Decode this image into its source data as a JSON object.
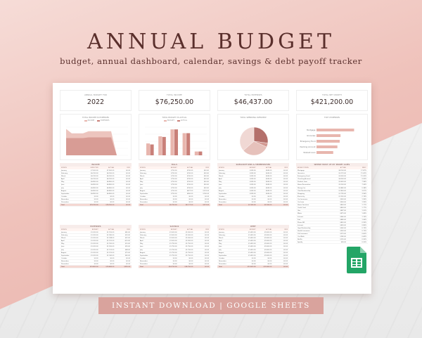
{
  "title": "ANNUAL BUDGET",
  "subtitle": "budget, annual dashboard, calendar, savings & debt payoff tracker",
  "banner": "INSTANT DOWNLOAD | GOOGLE SHEETS",
  "colors": {
    "accent": "#d9a39d",
    "title": "#5a2f2c",
    "bar_income": "#e8b6ae",
    "bar_expense": "#c98079",
    "pie": [
      "#b4706b",
      "#d39a93",
      "#e6c1bb",
      "#f0d8d4"
    ]
  },
  "kpis": [
    {
      "label": "ANNUAL BUDGET FOR",
      "value": "2022"
    },
    {
      "label": "TOTAL INCOME",
      "value": "$76,250.00"
    },
    {
      "label": "TOTAL EXPENSES",
      "value": "$46,437.00"
    },
    {
      "label": "TOTAL NET WORTH",
      "value": "$421,200.00"
    }
  ],
  "charts": [
    {
      "title": "TOTAL INCOME VS EXPENSES",
      "legend": [
        "INCOME",
        "EXPENSES"
      ]
    },
    {
      "title": "TOTAL BUDGET VS ACTUAL",
      "legend": [
        "BUDGET",
        "ACTUAL"
      ]
    },
    {
      "title": "TOTAL SPENDING OVERVIEW",
      "legend": []
    },
    {
      "title": "TOP 5 EXPENSES",
      "legend": []
    }
  ],
  "months": [
    "January",
    "February",
    "March",
    "April",
    "May",
    "June",
    "July",
    "August",
    "September",
    "October",
    "November",
    "December"
  ],
  "tables": [
    {
      "title": "INCOME",
      "cols": [
        "MONTH",
        "EXPECTED",
        "ACTUAL",
        "DIFF"
      ],
      "values": [
        [
          "$7,500.00",
          "$7,500.00",
          "$0.00"
        ],
        [
          "$6,250.00",
          "$6,250.00",
          "$0.00"
        ],
        [
          "$6,250.00",
          "$6,250.00",
          "$0.00"
        ],
        [
          "$6,250.00",
          "$6,250.00",
          "$0.00"
        ],
        [
          "$6,850.00",
          "$6,850.00",
          "$0.00"
        ],
        [
          "$6,850.00",
          "$6,850.00",
          "$0.00"
        ],
        [
          "$6,850.00",
          "$6,850.00",
          "$0.00"
        ],
        [
          "$6,850.00",
          "$6,850.00",
          "$0.00"
        ],
        [
          "$6,850.00",
          "$6,850.00",
          "$0.00"
        ],
        [
          "$0.00",
          "$0.00",
          "$0.00"
        ],
        [
          "$0.00",
          "$0.00",
          "$0.00"
        ],
        [
          "$0.00",
          "$0.00",
          "$0.00"
        ]
      ],
      "total": [
        "Total",
        "$76,250.00",
        "$76,250.00",
        "$0.00"
      ]
    },
    {
      "title": "BILLS",
      "cols": [
        "MONTH",
        "BUDGET",
        "ACTUAL",
        "DIFF"
      ],
      "values": [
        [
          "$750.00",
          "$700.00",
          "$50.00"
        ],
        [
          "$750.00",
          "$700.00",
          "$50.00"
        ],
        [
          "$750.00",
          "$700.00",
          "$50.00"
        ],
        [
          "$750.00",
          "$700.00",
          "$50.00"
        ],
        [
          "$750.00",
          "$700.00",
          "$50.00"
        ],
        [
          "$750.00",
          "$700.00",
          "$50.00"
        ],
        [
          "$750.00",
          "$700.00",
          "$50.00"
        ],
        [
          "$750.00",
          "$627.00",
          "$123.00"
        ],
        [
          "$750.00",
          "$650.00",
          "$100.00"
        ],
        [
          "$0.00",
          "$0.00",
          "$0.00"
        ],
        [
          "$0.00",
          "$0.00",
          "$0.00"
        ],
        [
          "$0.00",
          "$0.00",
          "$0.00"
        ]
      ],
      "total": [
        "Total",
        "$6,750.00",
        "$6,177.00",
        "$573.00"
      ]
    },
    {
      "title": "SUBSCRIPTIONS & MEMBERSHIPS",
      "cols": [
        "MONTH",
        "BUDGET",
        "ACTUAL",
        "DIFF"
      ],
      "values": [
        [
          "$240.00",
          "$240.00",
          "$0.00"
        ],
        [
          "$240.00",
          "$240.00",
          "$0.00"
        ],
        [
          "$240.00",
          "$240.00",
          "$0.00"
        ],
        [
          "$240.00",
          "$240.00",
          "$0.00"
        ],
        [
          "$240.00",
          "$240.00",
          "$0.00"
        ],
        [
          "$240.00",
          "$240.00",
          "$0.00"
        ],
        [
          "$240.00",
          "$240.00",
          "$0.00"
        ],
        [
          "$240.00",
          "$240.00",
          "$0.00"
        ],
        [
          "$240.00",
          "$240.00",
          "$0.00"
        ],
        [
          "$0.00",
          "$0.00",
          "$0.00"
        ],
        [
          "$0.00",
          "$0.00",
          "$0.00"
        ],
        [
          "$0.00",
          "$0.00",
          "$0.00"
        ]
      ],
      "total": [
        "Total",
        "$2,160.00",
        "$2,160.00",
        "$0.00"
      ]
    },
    {
      "title": "EXPENSES",
      "cols": [
        "MONTH",
        "BUDGET",
        "ACTUAL",
        "DIFF"
      ],
      "values": [
        [
          "$1,200.00",
          "$1,155.00",
          "$45.00"
        ],
        [
          "$1,200.00",
          "$1,180.00",
          "$20.00"
        ],
        [
          "$1,200.00",
          "$1,148.00",
          "$52.00"
        ],
        [
          "$1,200.00",
          "$1,210.00",
          "-$10.00"
        ],
        [
          "$1,200.00",
          "$1,190.00",
          "$10.00"
        ],
        [
          "$1,200.00",
          "$1,165.00",
          "$35.00"
        ],
        [
          "$1,200.00",
          "$1,132.00",
          "$68.00"
        ],
        [
          "$1,200.00",
          "$1,125.00",
          "$75.00"
        ],
        [
          "$1,200.00",
          "$1,140.00",
          "$60.00"
        ],
        [
          "$0.00",
          "$0.00",
          "$0.00"
        ],
        [
          "$0.00",
          "$0.00",
          "$0.00"
        ],
        [
          "$0.00",
          "$0.00",
          "$0.00"
        ]
      ],
      "total": [
        "Total",
        "$10,800.00",
        "$10,445.00",
        "$355.00"
      ]
    },
    {
      "title": "SAVINGS",
      "cols": [
        "MONTH",
        "BUDGET",
        "ACTUAL",
        "DIFF"
      ],
      "values": [
        [
          "$1,500.00",
          "$1,500.00",
          "$0.00"
        ],
        [
          "$1,500.00",
          "$1,500.00",
          "$0.00"
        ],
        [
          "$1,500.00",
          "$1,500.00",
          "$0.00"
        ],
        [
          "$1,500.00",
          "$1,500.00",
          "$0.00"
        ],
        [
          "$1,750.00",
          "$1,750.00",
          "$0.00"
        ],
        [
          "$1,750.00",
          "$1,750.00",
          "$0.00"
        ],
        [
          "$1,750.00",
          "$1,750.00",
          "$0.00"
        ],
        [
          "$1,750.00",
          "$1,750.00",
          "$0.00"
        ],
        [
          "$1,750.00",
          "$1,750.00",
          "$0.00"
        ],
        [
          "$0.00",
          "$0.00",
          "$0.00"
        ],
        [
          "$0.00",
          "$0.00",
          "$0.00"
        ],
        [
          "$0.00",
          "$0.00",
          "$0.00"
        ]
      ],
      "total": [
        "Total",
        "$14,750.00",
        "$14,750.00",
        "$0.00"
      ]
    },
    {
      "title": "DEBT",
      "cols": [
        "MONTH",
        "BUDGET",
        "ACTUAL",
        "DIFF"
      ],
      "values": [
        [
          "$1,400.00",
          "$1,400.00",
          "$0.00"
        ],
        [
          "$1,400.00",
          "$1,400.00",
          "$0.00"
        ],
        [
          "$1,400.00",
          "$1,400.00",
          "$0.00"
        ],
        [
          "$1,400.00",
          "$1,400.00",
          "$0.00"
        ],
        [
          "$1,400.00",
          "$1,400.00",
          "$0.00"
        ],
        [
          "$1,400.00",
          "$1,400.00",
          "$0.00"
        ],
        [
          "$1,400.00",
          "$1,400.00",
          "$0.00"
        ],
        [
          "$1,400.00",
          "$1,400.00",
          "$0.00"
        ],
        [
          "$1,400.00",
          "$1,400.00",
          "$0.00"
        ],
        [
          "$0.00",
          "$0.00",
          "$0.00"
        ],
        [
          "$0.00",
          "$0.00",
          "$0.00"
        ],
        [
          "$0.00",
          "$0.00",
          "$0.00"
        ]
      ],
      "total": [
        "Total",
        "$12,600.00",
        "$12,600.00",
        "$0.00"
      ]
    }
  ],
  "expense_list": {
    "title": "WHERE MOST OF MY MONEY GOES",
    "cols": [
      "BUDGET ITEMS",
      "ACTUAL",
      "PERC."
    ],
    "rows": [
      [
        "Mortgage",
        "$8,100.00",
        "17.87%"
      ],
      [
        "Groceries",
        "$5,170.00",
        "11.41%"
      ],
      [
        "Emergency Fund",
        "$5,000.00",
        "11.03%"
      ],
      [
        "Checking Account",
        "$4,500.00",
        "9.93%"
      ],
      [
        "Student Loan",
        "$3,600.00",
        "7.94%"
      ],
      [
        "Home Renovation",
        "$3,200.00",
        "7.06%"
      ],
      [
        "Dining Out",
        "$2,440.00",
        "5.38%"
      ],
      [
        "Club Membership",
        "$1,800.00",
        "3.97%"
      ],
      [
        "Shopping",
        "$1,795.00",
        "3.96%"
      ],
      [
        "Electricity",
        "$1,250.00",
        "2.76%"
      ],
      [
        "Car Insurance",
        "$900.00",
        "1.99%"
      ],
      [
        "Car Loan",
        "$900.00",
        "1.99%"
      ],
      [
        "Home Furniture",
        "$800.00",
        "1.77%"
      ],
      [
        "Credit Card",
        "$800.00",
        "1.77%"
      ],
      [
        "Gas",
        "$687.00",
        "1.52%"
      ],
      [
        "Water",
        "$675.00",
        "1.49%"
      ],
      [
        "Internet",
        "$540.00",
        "1.19%"
      ],
      [
        "Fuel",
        "$480.00",
        "1.06%"
      ],
      [
        "Phone Bill",
        "$450.00",
        "0.99%"
      ],
      [
        "Internet",
        "$405.00",
        "0.89%"
      ],
      [
        "Gym Membership",
        "$360.00",
        "0.79%"
      ],
      [
        "Health Insurance",
        "$330.00",
        "0.73%"
      ],
      [
        "Life Insurance",
        "$270.00",
        "0.60%"
      ],
      [
        "Car Wash",
        "$180.00",
        "0.40%"
      ],
      [
        "Netflix",
        "$135.00",
        "0.30%"
      ],
      [
        "Spotify",
        "$90.00",
        "0.20%"
      ]
    ]
  },
  "chart_data": [
    {
      "type": "area",
      "title": "TOTAL INCOME VS EXPENSES",
      "categories": [
        "Jan",
        "Feb",
        "Mar",
        "Apr",
        "May",
        "Jun",
        "Jul",
        "Aug",
        "Sep",
        "Oct",
        "Nov",
        "Dec"
      ],
      "series": [
        {
          "name": "INCOME",
          "values": [
            7500,
            6250,
            6250,
            6250,
            6850,
            6850,
            6850,
            6850,
            6850,
            0,
            0,
            0
          ]
        },
        {
          "name": "EXPENSES",
          "values": [
            4900,
            4900,
            4900,
            4900,
            5100,
            5100,
            5100,
            5100,
            5100,
            0,
            0,
            0
          ]
        }
      ]
    },
    {
      "type": "bar",
      "title": "TOTAL BUDGET VS ACTUAL",
      "categories": [
        "Bills",
        "Expenses",
        "Savings",
        "Debt",
        "Subscr."
      ],
      "series": [
        {
          "name": "BUDGET",
          "values": [
            6750,
            10800,
            14750,
            12600,
            2160
          ]
        },
        {
          "name": "ACTUAL",
          "values": [
            6177,
            10445,
            14750,
            12600,
            2160
          ]
        }
      ]
    },
    {
      "type": "pie",
      "title": "TOTAL SPENDING OVERVIEW",
      "categories": [
        "Debt",
        "Subscriptions",
        "Savings",
        "Expenses"
      ],
      "values": [
        12600,
        2160,
        14750,
        16927
      ]
    },
    {
      "type": "bar",
      "title": "TOP 5 EXPENSES",
      "orientation": "horizontal",
      "categories": [
        "Mortgage",
        "Groceries",
        "Emergency Fund",
        "Checking Account",
        "Student Loan"
      ],
      "values": [
        8100,
        5170,
        5000,
        4500,
        3600
      ]
    }
  ]
}
